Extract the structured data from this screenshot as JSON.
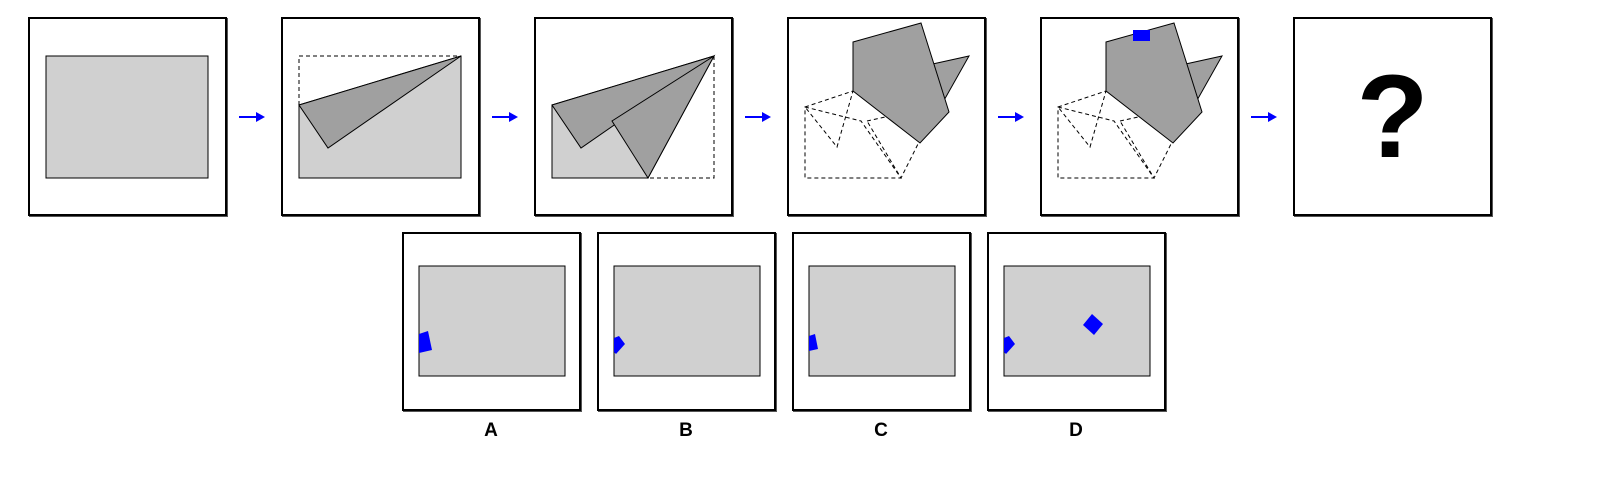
{
  "colors": {
    "paper": "#d0d0d0",
    "folded": "#a0a0a0",
    "punch": "#0000ff",
    "arrow": "#0000ff",
    "outline": "#000000"
  },
  "sequence": {
    "step_count": 5,
    "question": "?"
  },
  "options": [
    {
      "label": "A"
    },
    {
      "label": "B"
    },
    {
      "label": "C"
    },
    {
      "label": "D"
    }
  ]
}
